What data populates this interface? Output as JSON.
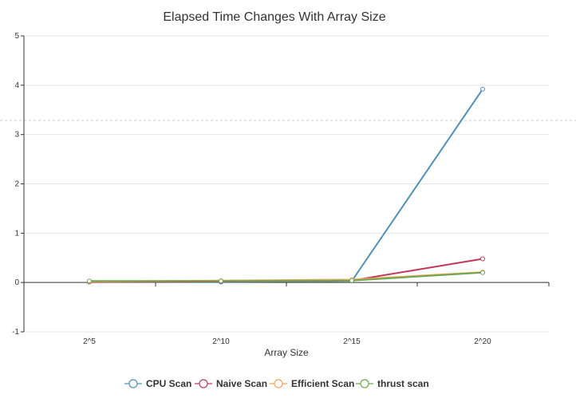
{
  "chart_data": {
    "type": "line",
    "title": "Elapsed Time Changes With Array Size",
    "xlabel": "Array Size",
    "ylabel": "",
    "categories": [
      "2^5",
      "2^10",
      "2^15",
      "2^20"
    ],
    "ylim": [
      -1,
      5
    ],
    "yticks": [
      "-1",
      "0",
      "1",
      "2",
      "3",
      "4",
      "5"
    ],
    "grid": true,
    "legend_position": "bottom",
    "series": [
      {
        "name": "CPU Scan",
        "color": "#4e92b8",
        "values": [
          0.01,
          0.01,
          0.03,
          3.92
        ]
      },
      {
        "name": "Naive Scan",
        "color": "#c0395a",
        "values": [
          0.01,
          0.02,
          0.04,
          0.48
        ]
      },
      {
        "name": "Efficient Scan",
        "color": "#f2a55a",
        "values": [
          0.02,
          0.04,
          0.06,
          0.21
        ]
      },
      {
        "name": "thrust scan",
        "color": "#6aa84f",
        "values": [
          0.03,
          0.03,
          0.04,
          0.2
        ]
      }
    ]
  }
}
